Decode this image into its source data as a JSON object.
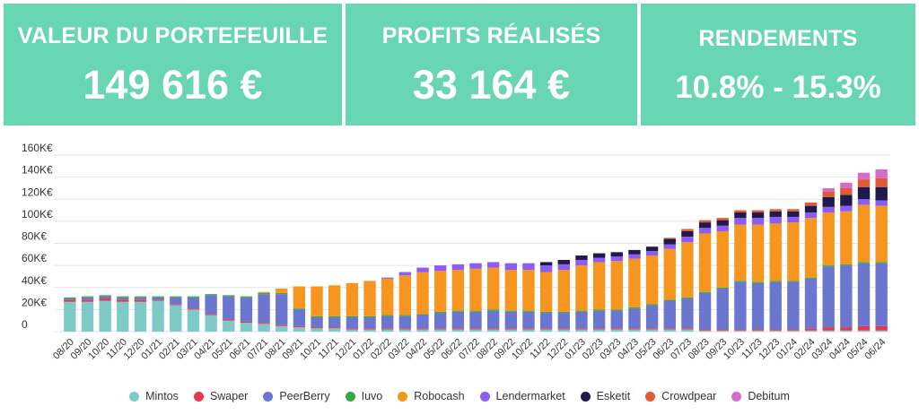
{
  "kpis": [
    {
      "title": "VALEUR DU PORTEFEUILLE",
      "value": "149 616 €"
    },
    {
      "title": "PROFITS RÉALISÉS",
      "value": "33 164 €"
    },
    {
      "title": "RENDEMENTS",
      "value": "10.8% - 15.3%"
    }
  ],
  "colors": {
    "kpi_background": "#68d6b2",
    "kpi_text": "#ffffff"
  },
  "chart_data": {
    "type": "bar",
    "stacked": true,
    "title": "",
    "xlabel": "",
    "ylabel": "",
    "ylim": [
      0,
      160
    ],
    "y_ticks": [
      "0",
      "20K€",
      "40K€",
      "60K€",
      "80K€",
      "100K€",
      "120K€",
      "140K€",
      "160K€"
    ],
    "grid": true,
    "legend_position": "bottom",
    "categories": [
      "08/20",
      "09/20",
      "10/20",
      "11/20",
      "12/20",
      "01/21",
      "02/21",
      "03/21",
      "04/21",
      "05/21",
      "06/21",
      "07/21",
      "08/21",
      "09/21",
      "10/21",
      "11/21",
      "12/21",
      "01/22",
      "02/22",
      "03/22",
      "04/22",
      "05/22",
      "06/22",
      "07/22",
      "08/22",
      "09/22",
      "10/22",
      "11/22",
      "12/22",
      "01/23",
      "02/23",
      "03/23",
      "04/23",
      "05/23",
      "06/23",
      "07/23",
      "08/23",
      "09/23",
      "10/23",
      "11/23",
      "12/23",
      "01/24",
      "02/24",
      "03/24",
      "04/24",
      "05/24",
      "06/24"
    ],
    "series": [
      {
        "name": "Mintos",
        "color": "#7ecac6",
        "values": [
          27,
          27,
          28,
          27,
          27,
          28,
          24,
          20,
          15,
          10,
          8,
          7,
          5,
          4,
          3,
          3,
          2,
          2,
          2,
          2,
          2,
          2,
          2,
          2,
          2,
          2,
          2,
          2,
          2,
          2,
          2,
          2,
          2,
          2,
          2,
          2,
          1,
          1,
          1,
          1,
          1,
          1,
          1,
          1,
          1,
          1,
          1
        ]
      },
      {
        "name": "Swaper",
        "color": "#e8384f",
        "values": [
          2,
          2,
          2,
          2,
          2,
          1,
          1,
          1,
          1,
          1,
          1,
          1,
          1,
          1,
          1,
          1,
          1,
          1,
          1,
          1,
          1,
          1,
          1,
          1,
          1,
          1,
          1,
          1,
          1,
          1,
          1,
          1,
          1,
          1,
          1,
          1,
          1,
          1,
          1,
          1,
          1,
          1,
          2,
          3,
          3,
          4,
          4
        ]
      },
      {
        "name": "PeerBerry",
        "color": "#6b76cf",
        "values": [
          1,
          2,
          2,
          2,
          2,
          2,
          6,
          10,
          17,
          21,
          22,
          26,
          28,
          15,
          9,
          9,
          10,
          10,
          11,
          11,
          12,
          14,
          15,
          15,
          16,
          15,
          15,
          14,
          14,
          15,
          16,
          16,
          18,
          21,
          25,
          27,
          33,
          37,
          43,
          42,
          43,
          43,
          45,
          55,
          56,
          57,
          57
        ]
      },
      {
        "name": "Iuvo",
        "color": "#3aa845",
        "values": [
          1,
          1,
          1,
          1,
          1,
          1,
          1,
          1,
          1,
          1,
          1,
          1,
          1,
          1,
          1,
          1,
          1,
          1,
          1,
          1,
          1,
          1,
          1,
          1,
          1,
          1,
          1,
          1,
          1,
          1,
          1,
          1,
          1,
          1,
          1,
          1,
          1,
          1,
          1,
          1,
          1,
          1,
          1,
          1,
          1,
          1,
          1
        ]
      },
      {
        "name": "Robocash",
        "color": "#f6961e",
        "values": [
          0,
          0,
          0,
          0,
          0,
          0,
          0,
          0,
          0,
          0,
          0,
          1,
          4,
          20,
          27,
          28,
          30,
          32,
          33,
          36,
          38,
          37,
          37,
          38,
          38,
          37,
          37,
          36,
          38,
          41,
          43,
          44,
          44,
          44,
          46,
          50,
          53,
          51,
          51,
          52,
          52,
          53,
          54,
          48,
          48,
          52,
          51
        ]
      },
      {
        "name": "Lendermarket",
        "color": "#8b5cf6",
        "values": [
          0,
          0,
          0,
          0,
          0,
          0,
          0,
          0,
          0,
          0,
          0,
          0,
          0,
          0,
          0,
          0,
          0,
          0,
          1,
          3,
          4,
          5,
          5,
          5,
          5,
          6,
          6,
          6,
          5,
          5,
          4,
          4,
          4,
          4,
          4,
          5,
          5,
          5,
          6,
          6,
          6,
          5,
          5,
          5,
          5,
          5,
          5
        ]
      },
      {
        "name": "Esketit",
        "color": "#1f1a4b",
        "values": [
          0,
          0,
          0,
          0,
          0,
          0,
          0,
          0,
          0,
          0,
          0,
          0,
          0,
          0,
          0,
          0,
          0,
          0,
          0,
          0,
          0,
          0,
          0,
          0,
          0,
          0,
          0,
          3,
          4,
          4,
          4,
          4,
          4,
          4,
          5,
          5,
          5,
          5,
          5,
          5,
          5,
          5,
          6,
          9,
          10,
          11,
          12
        ]
      },
      {
        "name": "Crowdpear",
        "color": "#e05a36",
        "values": [
          0,
          0,
          0,
          0,
          0,
          0,
          0,
          0,
          0,
          0,
          0,
          0,
          0,
          0,
          0,
          0,
          0,
          0,
          0,
          0,
          0,
          0,
          0,
          0,
          0,
          0,
          0,
          0,
          0,
          0,
          0,
          0,
          0,
          0,
          1,
          2,
          2,
          2,
          2,
          2,
          2,
          2,
          3,
          5,
          6,
          7,
          8
        ]
      },
      {
        "name": "Debitum",
        "color": "#d86ac9",
        "values": [
          0,
          0,
          0,
          0,
          0,
          0,
          0,
          0,
          0,
          0,
          0,
          0,
          0,
          0,
          0,
          0,
          0,
          0,
          0,
          0,
          0,
          0,
          0,
          0,
          0,
          0,
          0,
          0,
          0,
          0,
          0,
          0,
          0,
          0,
          0,
          0,
          0,
          0,
          0,
          0,
          0,
          0,
          0,
          3,
          5,
          6,
          8
        ]
      }
    ]
  }
}
